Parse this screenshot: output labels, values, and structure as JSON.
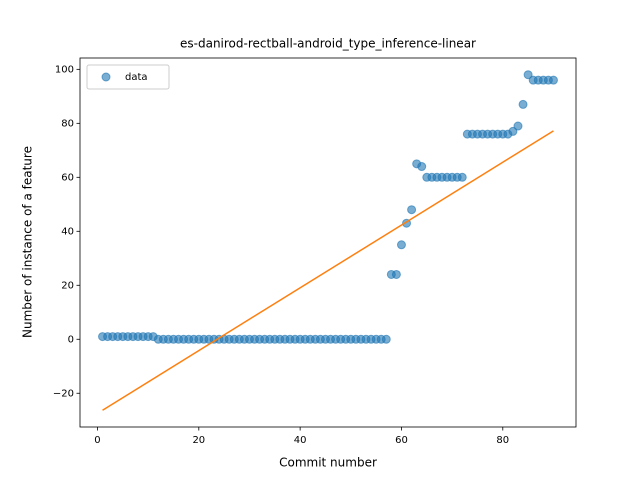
{
  "chart_data": {
    "type": "scatter",
    "title": "es-danirod-rectball-android_type_inference-linear",
    "xlabel": "Commit number",
    "ylabel": "Number of instance of a feature",
    "x": [
      1,
      2,
      3,
      4,
      5,
      6,
      7,
      8,
      9,
      10,
      11,
      12,
      13,
      14,
      15,
      16,
      17,
      18,
      19,
      20,
      21,
      22,
      23,
      24,
      25,
      26,
      27,
      28,
      29,
      30,
      31,
      32,
      33,
      34,
      35,
      36,
      37,
      38,
      39,
      40,
      41,
      42,
      43,
      44,
      45,
      46,
      47,
      48,
      49,
      50,
      51,
      52,
      53,
      54,
      55,
      56,
      57,
      58,
      59,
      60,
      61,
      62,
      63,
      64,
      65,
      66,
      67,
      68,
      69,
      70,
      71,
      72,
      73,
      74,
      75,
      76,
      77,
      78,
      79,
      80,
      81,
      82,
      83,
      84,
      85,
      86,
      87,
      88,
      89,
      90
    ],
    "series": [
      {
        "name": "data",
        "color": "#1f77b4",
        "values": [
          1,
          1,
          1,
          1,
          1,
          1,
          1,
          1,
          1,
          1,
          1,
          0,
          0,
          0,
          0,
          0,
          0,
          0,
          0,
          0,
          0,
          0,
          0,
          0,
          0,
          0,
          0,
          0,
          0,
          0,
          0,
          0,
          0,
          0,
          0,
          0,
          0,
          0,
          0,
          0,
          0,
          0,
          0,
          0,
          0,
          0,
          0,
          0,
          0,
          0,
          0,
          0,
          0,
          0,
          0,
          0,
          0,
          24,
          24,
          35,
          43,
          48,
          65,
          64,
          60,
          60,
          60,
          60,
          60,
          60,
          60,
          60,
          76,
          76,
          76,
          76,
          76,
          76,
          76,
          76,
          76,
          77,
          79,
          87,
          98,
          96,
          96,
          96,
          96,
          96
        ]
      }
    ],
    "fit": {
      "x": [
        1,
        90
      ],
      "values": [
        -26.3,
        77.2
      ],
      "color": "#ff7f0e"
    },
    "xlim": [
      -3.45,
      94.45
    ],
    "ylim": [
      -32.5,
      104.2
    ],
    "xticks": [
      0,
      20,
      40,
      60,
      80
    ],
    "yticks": [
      {
        "value": -20,
        "label": "−20"
      },
      0,
      20,
      40,
      60,
      80,
      100
    ],
    "legend": "upper left"
  }
}
